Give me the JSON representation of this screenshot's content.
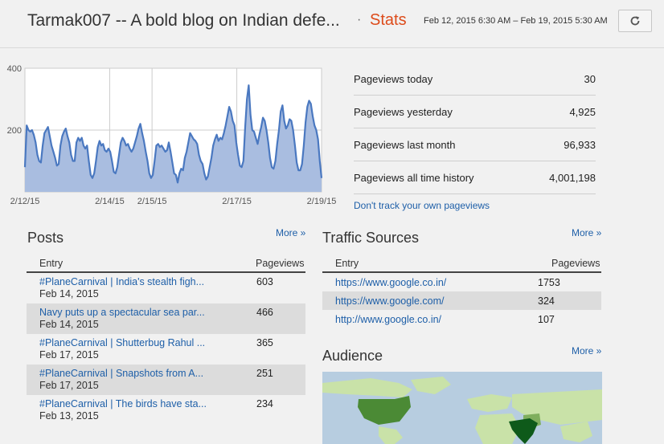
{
  "header": {
    "blog_title": "Tarmak007 -- A bold blog on Indian defe...",
    "separator": "·",
    "stats_label": "Stats",
    "date_range": "Feb 12, 2015 6:30 AM – Feb 19, 2015 5:30 AM",
    "refresh_icon": "refresh-icon"
  },
  "chart_data": {
    "type": "area",
    "ylim": [
      0,
      400
    ],
    "y_ticks": [
      200,
      400
    ],
    "x_tick_labels": [
      "2/12/15",
      "2/14/15",
      "2/15/15",
      "2/17/15",
      "2/19/15"
    ],
    "x_tick_hours": [
      0,
      48,
      72,
      120,
      168
    ],
    "grid": true,
    "fill_color": "#a9bde0",
    "line_color": "#4a78c0",
    "series": [
      {
        "values": [
          80,
          215,
          200,
          195,
          200,
          185,
          160,
          120,
          100,
          95,
          150,
          190,
          200,
          210,
          180,
          150,
          130,
          110,
          85,
          90,
          150,
          180,
          195,
          205,
          180,
          160,
          120,
          100,
          100,
          160,
          175,
          165,
          175,
          150,
          140,
          150,
          100,
          55,
          45,
          60,
          100,
          145,
          165,
          150,
          155,
          135,
          130,
          140,
          130,
          100,
          65,
          60,
          80,
          120,
          160,
          175,
          165,
          150,
          155,
          140,
          130,
          140,
          160,
          180,
          205,
          220,
          190,
          165,
          130,
          100,
          60,
          45,
          55,
          100,
          150,
          155,
          145,
          150,
          140,
          130,
          135,
          160,
          130,
          95,
          60,
          55,
          30,
          60,
          75,
          70,
          110,
          130,
          160,
          190,
          180,
          170,
          165,
          155,
          120,
          100,
          90,
          60,
          40,
          50,
          80,
          110,
          150,
          170,
          185,
          165,
          175,
          170,
          190,
          215,
          245,
          275,
          260,
          230,
          215,
          160,
          120,
          85,
          80,
          100,
          210,
          300,
          345,
          250,
          200,
          195,
          175,
          155,
          185,
          210,
          240,
          230,
          200,
          160,
          110,
          80,
          75,
          100,
          155,
          200,
          260,
          280,
          230,
          205,
          215,
          235,
          230,
          200,
          150,
          95,
          70,
          70,
          90,
          150,
          225,
          275,
          295,
          285,
          245,
          215,
          200,
          170,
          100,
          45
        ]
      }
    ]
  },
  "pageviews": {
    "rows": [
      {
        "label": "Pageviews today",
        "value": "30"
      },
      {
        "label": "Pageviews yesterday",
        "value": "4,925"
      },
      {
        "label": "Pageviews last month",
        "value": "96,933"
      },
      {
        "label": "Pageviews all time history",
        "value": "4,001,198"
      }
    ],
    "dont_track": "Don't track your own pageviews"
  },
  "posts": {
    "title": "Posts",
    "more": "More »",
    "col_entry": "Entry",
    "col_pageviews": "Pageviews",
    "rows": [
      {
        "title": "#PlaneCarnival | India's stealth figh...",
        "date": "Feb 14, 2015",
        "views": "603"
      },
      {
        "title": "Navy puts up a spectacular sea par...",
        "date": "Feb 14, 2015",
        "views": "466"
      },
      {
        "title": "#PlaneCarnival | Shutterbug Rahul ...",
        "date": "Feb 17, 2015",
        "views": "365"
      },
      {
        "title": "#PlaneCarnival | Snapshots from A...",
        "date": "Feb 17, 2015",
        "views": "251"
      },
      {
        "title": "#PlaneCarnival | The birds have sta...",
        "date": "Feb 13, 2015",
        "views": "234"
      }
    ]
  },
  "traffic": {
    "title": "Traffic Sources",
    "more": "More »",
    "col_entry": "Entry",
    "col_pageviews": "Pageviews",
    "rows": [
      {
        "url": "https://www.google.co.in/",
        "views": "1753"
      },
      {
        "url": "https://www.google.com/",
        "views": "324"
      },
      {
        "url": "http://www.google.co.in/",
        "views": "107"
      }
    ]
  },
  "audience": {
    "title": "Audience",
    "more": "More »",
    "map_colors": {
      "ocean": "#b7cde0",
      "land": "#c9e2a8",
      "mid": "#7fae5e",
      "high": "#4b8a35",
      "top": "#0e5a1a"
    }
  }
}
